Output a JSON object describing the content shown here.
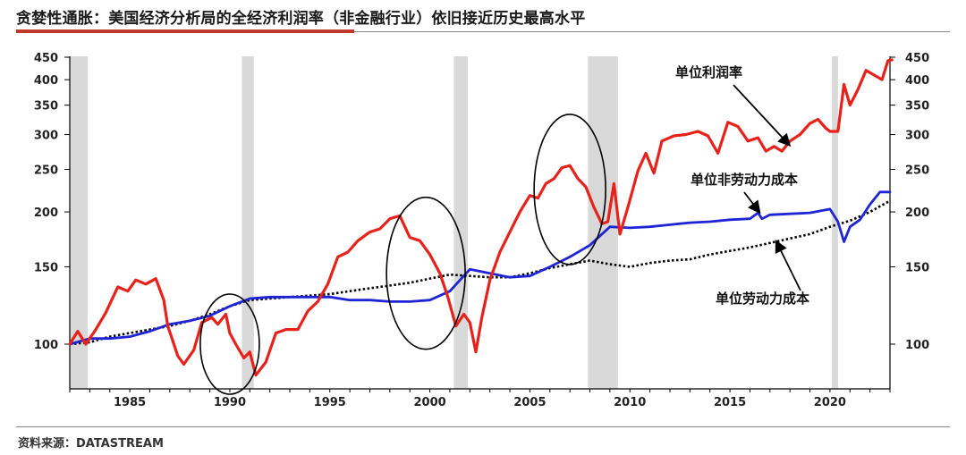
{
  "title": "贪婪性通胀：美国经济分析局的全经济利润率（非金融行业）依旧接近历史最高水平",
  "source": "资料来源：DATASTREAM",
  "colors": {
    "accent": "#c0392b",
    "profit": "#e8211b",
    "nonlabor": "#1f24d6",
    "labor": "#000000",
    "shade": "#d9d9d9"
  },
  "chart_data": {
    "type": "line",
    "y_scale": "log",
    "x_range": [
      1982,
      2023
    ],
    "y_range": [
      80,
      450
    ],
    "x_ticks": [
      {
        "value": 1985,
        "label": "1985"
      },
      {
        "value": 1990,
        "label": "1990"
      },
      {
        "value": 1995,
        "label": "1995"
      },
      {
        "value": 2000,
        "label": "2000"
      },
      {
        "value": 2005,
        "label": "2005"
      },
      {
        "value": 2010,
        "label": "2010"
      },
      {
        "value": 2015,
        "label": "2015"
      },
      {
        "value": 2020,
        "label": "2020"
      }
    ],
    "y_ticks_left": [
      {
        "value": 450,
        "label": "450"
      },
      {
        "value": 400,
        "label": "400"
      },
      {
        "value": 350,
        "label": "350"
      },
      {
        "value": 300,
        "label": "300"
      },
      {
        "value": 250,
        "label": "250"
      },
      {
        "value": 200,
        "label": "200"
      },
      {
        "value": 150,
        "label": "150"
      },
      {
        "value": 100,
        "label": "100"
      }
    ],
    "y_ticks_right": [
      {
        "value": 450,
        "label": "450"
      },
      {
        "value": 400,
        "label": "400"
      },
      {
        "value": 350,
        "label": "350"
      },
      {
        "value": 300,
        "label": "300"
      },
      {
        "value": 250,
        "label": "250"
      },
      {
        "value": 200,
        "label": "200"
      },
      {
        "value": 150,
        "label": "150"
      },
      {
        "value": 100,
        "label": "100"
      }
    ],
    "recessions": [
      [
        1982.0,
        1982.9
      ],
      [
        1990.6,
        1991.2
      ],
      [
        2001.2,
        2001.9
      ],
      [
        2007.9,
        2009.4
      ],
      [
        2020.1,
        2020.4
      ]
    ],
    "series": [
      {
        "name": "单位利润率",
        "key": "profit",
        "style": "solid",
        "points": [
          [
            1982.0,
            100
          ],
          [
            1982.4,
            107
          ],
          [
            1982.8,
            100
          ],
          [
            1983.3,
            108
          ],
          [
            1983.8,
            118
          ],
          [
            1984.4,
            135
          ],
          [
            1984.9,
            132
          ],
          [
            1985.3,
            140
          ],
          [
            1985.8,
            137
          ],
          [
            1986.3,
            141
          ],
          [
            1986.7,
            126
          ],
          [
            1986.9,
            110
          ],
          [
            1987.4,
            94
          ],
          [
            1987.7,
            90
          ],
          [
            1988.2,
            97
          ],
          [
            1988.6,
            112
          ],
          [
            1989.1,
            115
          ],
          [
            1989.4,
            111
          ],
          [
            1989.8,
            117
          ],
          [
            1990.0,
            106
          ],
          [
            1990.3,
            100
          ],
          [
            1990.7,
            93
          ],
          [
            1991.0,
            96
          ],
          [
            1991.3,
            85
          ],
          [
            1991.8,
            91
          ],
          [
            1992.3,
            106
          ],
          [
            1992.8,
            108
          ],
          [
            1993.4,
            108
          ],
          [
            1993.9,
            119
          ],
          [
            1994.4,
            125
          ],
          [
            1994.9,
            137
          ],
          [
            1995.4,
            158
          ],
          [
            1995.9,
            162
          ],
          [
            1996.4,
            172
          ],
          [
            1997.0,
            180
          ],
          [
            1997.5,
            183
          ],
          [
            1998.0,
            193
          ],
          [
            1998.5,
            196
          ],
          [
            1999.0,
            175
          ],
          [
            1999.5,
            172
          ],
          [
            2000.0,
            160
          ],
          [
            2000.5,
            145
          ],
          [
            2000.9,
            128
          ],
          [
            2001.3,
            110
          ],
          [
            2001.7,
            117
          ],
          [
            2002.0,
            112
          ],
          [
            2002.3,
            96
          ],
          [
            2002.6,
            115
          ],
          [
            2003.0,
            140
          ],
          [
            2003.5,
            162
          ],
          [
            2004.0,
            180
          ],
          [
            2004.5,
            200
          ],
          [
            2005.0,
            218
          ],
          [
            2005.4,
            215
          ],
          [
            2005.8,
            232
          ],
          [
            2006.2,
            238
          ],
          [
            2006.6,
            252
          ],
          [
            2007.0,
            255
          ],
          [
            2007.4,
            238
          ],
          [
            2007.8,
            228
          ],
          [
            2008.2,
            205
          ],
          [
            2008.6,
            188
          ],
          [
            2008.9,
            190
          ],
          [
            2009.2,
            232
          ],
          [
            2009.5,
            178
          ],
          [
            2009.9,
            205
          ],
          [
            2010.4,
            248
          ],
          [
            2010.8,
            272
          ],
          [
            2011.2,
            245
          ],
          [
            2011.6,
            290
          ],
          [
            2012.2,
            298
          ],
          [
            2012.8,
            300
          ],
          [
            2013.4,
            305
          ],
          [
            2013.9,
            298
          ],
          [
            2014.4,
            272
          ],
          [
            2014.9,
            320
          ],
          [
            2015.4,
            313
          ],
          [
            2015.9,
            290
          ],
          [
            2016.4,
            295
          ],
          [
            2016.8,
            275
          ],
          [
            2017.2,
            282
          ],
          [
            2017.6,
            275
          ],
          [
            2018.0,
            290
          ],
          [
            2018.5,
            300
          ],
          [
            2019.0,
            318
          ],
          [
            2019.4,
            325
          ],
          [
            2019.8,
            310
          ],
          [
            2020.0,
            305
          ],
          [
            2020.4,
            305
          ],
          [
            2020.7,
            390
          ],
          [
            2021.0,
            350
          ],
          [
            2021.4,
            380
          ],
          [
            2021.8,
            420
          ],
          [
            2022.2,
            410
          ],
          [
            2022.6,
            400
          ],
          [
            2022.9,
            442
          ],
          [
            2023.1,
            444
          ]
        ]
      },
      {
        "name": "单位非劳动力成本",
        "key": "nonlabor",
        "style": "solid",
        "points": [
          [
            1982.0,
            100
          ],
          [
            1983.0,
            103
          ],
          [
            1984.0,
            103
          ],
          [
            1985.0,
            104
          ],
          [
            1986.0,
            107
          ],
          [
            1987.0,
            111
          ],
          [
            1988.0,
            113
          ],
          [
            1989.0,
            116
          ],
          [
            1990.0,
            122
          ],
          [
            1991.0,
            127
          ],
          [
            1992.0,
            128
          ],
          [
            1993.0,
            128
          ],
          [
            1994.0,
            128
          ],
          [
            1995.0,
            128
          ],
          [
            1996.0,
            126
          ],
          [
            1997.0,
            126
          ],
          [
            1998.0,
            125
          ],
          [
            1999.0,
            125
          ],
          [
            2000.0,
            126
          ],
          [
            2001.0,
            132
          ],
          [
            2002.0,
            148
          ],
          [
            2003.0,
            145
          ],
          [
            2004.0,
            142
          ],
          [
            2005.0,
            143
          ],
          [
            2006.0,
            150
          ],
          [
            2007.0,
            158
          ],
          [
            2008.0,
            168
          ],
          [
            2009.0,
            185
          ],
          [
            2010.0,
            184
          ],
          [
            2011.0,
            185
          ],
          [
            2012.0,
            187
          ],
          [
            2013.0,
            189
          ],
          [
            2014.0,
            190
          ],
          [
            2015.0,
            192
          ],
          [
            2016.0,
            193
          ],
          [
            2016.4,
            199
          ],
          [
            2016.6,
            193
          ],
          [
            2017.0,
            197
          ],
          [
            2018.0,
            198
          ],
          [
            2019.0,
            199
          ],
          [
            2020.0,
            203
          ],
          [
            2020.4,
            190
          ],
          [
            2020.7,
            171
          ],
          [
            2021.0,
            185
          ],
          [
            2021.5,
            192
          ],
          [
            2022.0,
            208
          ],
          [
            2022.5,
            222
          ],
          [
            2023.0,
            222
          ]
        ]
      },
      {
        "name": "单位劳动力成本",
        "key": "labor",
        "style": "dotted",
        "points": [
          [
            1982.0,
            100
          ],
          [
            1983.0,
            101
          ],
          [
            1984.0,
            104
          ],
          [
            1985.0,
            106
          ],
          [
            1986.0,
            108
          ],
          [
            1987.0,
            110
          ],
          [
            1988.0,
            113
          ],
          [
            1989.0,
            117
          ],
          [
            1990.0,
            122
          ],
          [
            1991.0,
            126
          ],
          [
            1992.0,
            127
          ],
          [
            1993.0,
            128
          ],
          [
            1994.0,
            129
          ],
          [
            1995.0,
            130
          ],
          [
            1996.0,
            132
          ],
          [
            1997.0,
            134
          ],
          [
            1998.0,
            136
          ],
          [
            1999.0,
            138
          ],
          [
            2000.0,
            141
          ],
          [
            2001.0,
            144
          ],
          [
            2002.0,
            143
          ],
          [
            2003.0,
            142
          ],
          [
            2004.0,
            142
          ],
          [
            2005.0,
            145
          ],
          [
            2006.0,
            149
          ],
          [
            2007.0,
            152
          ],
          [
            2008.0,
            155
          ],
          [
            2009.0,
            152
          ],
          [
            2010.0,
            150
          ],
          [
            2011.0,
            153
          ],
          [
            2012.0,
            155
          ],
          [
            2013.0,
            156
          ],
          [
            2014.0,
            160
          ],
          [
            2015.0,
            163
          ],
          [
            2016.0,
            166
          ],
          [
            2017.0,
            170
          ],
          [
            2018.0,
            174
          ],
          [
            2019.0,
            178
          ],
          [
            2020.0,
            185
          ],
          [
            2021.0,
            191
          ],
          [
            2022.0,
            200
          ],
          [
            2023.0,
            212
          ]
        ]
      }
    ],
    "annotations": [
      {
        "label": "单位利润率",
        "series": "profit",
        "at": [
          2018.0,
          283
        ]
      },
      {
        "label": "单位非劳动力成本",
        "series": "nonlabor",
        "at": [
          2016.5,
          199
        ]
      },
      {
        "label": "单位劳动力成本",
        "series": "labor",
        "at": [
          2017.3,
          172
        ]
      }
    ],
    "circles": [
      {
        "x": 1990.0,
        "y": 100
      },
      {
        "x": 1999.8,
        "y": 145
      },
      {
        "x": 2007.0,
        "y": 225
      }
    ]
  }
}
